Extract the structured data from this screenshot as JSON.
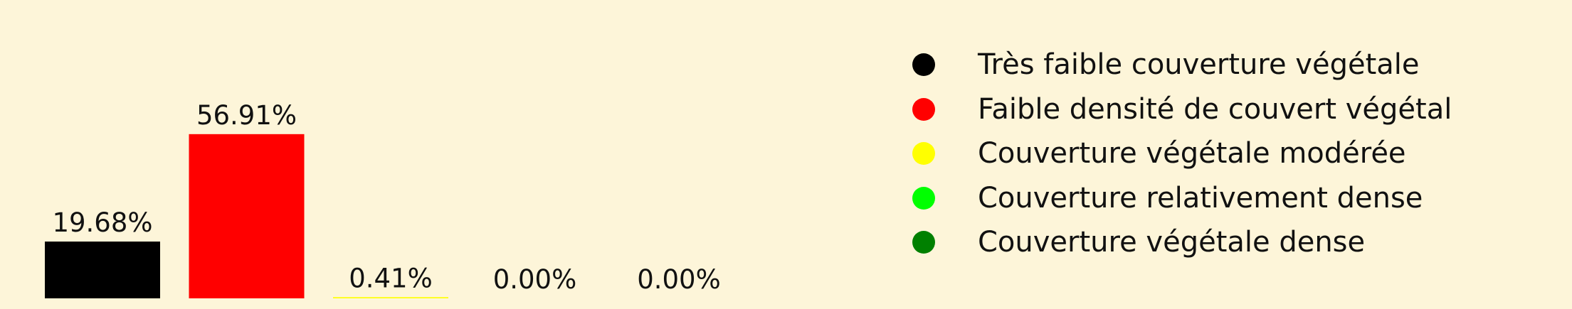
{
  "chart_data": {
    "type": "bar",
    "categories": [
      "Très faible couverture végétale",
      "Faible densité de couvert végétal",
      "Couverture végétale modérée",
      "Couverture relativement dense",
      "Couverture végétale dense"
    ],
    "values": [
      19.68,
      56.91,
      0.41,
      0.0,
      0.0
    ],
    "value_labels": [
      "19.68%",
      "56.91%",
      "0.41%",
      "0.00%",
      "0.00%"
    ],
    "colors": [
      "#000000",
      "#ff0000",
      "#ffff00",
      "#00ff00",
      "#008000"
    ],
    "ylim": [
      0,
      100
    ],
    "xlabel": "",
    "ylabel": "",
    "grid": false,
    "legend_position": "right",
    "background": "#fdf5d9"
  }
}
